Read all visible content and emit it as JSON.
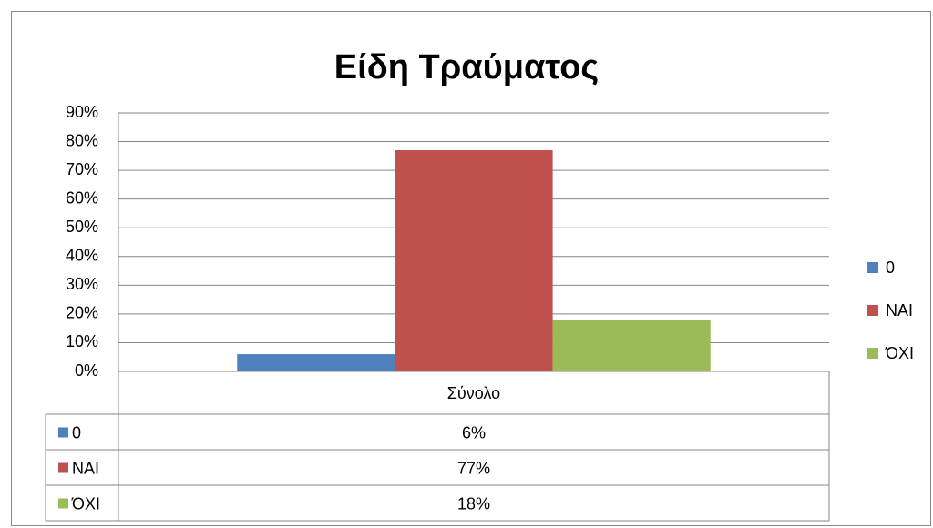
{
  "chart_data": {
    "type": "bar",
    "title": "Είδη Τραύματος",
    "categories": [
      "Σύνολο"
    ],
    "series": [
      {
        "name": "0",
        "color": "#4f81bd",
        "values": [
          6
        ],
        "value_labels": [
          "6%"
        ]
      },
      {
        "name": "ΝΑΙ",
        "color": "#c0504d",
        "values": [
          77
        ],
        "value_labels": [
          "77%"
        ]
      },
      {
        "name": "ΌΧΙ",
        "color": "#9bbb59",
        "values": [
          18
        ],
        "value_labels": [
          "18%"
        ]
      }
    ],
    "ylim": [
      0,
      90
    ],
    "yticks": [
      {
        "value": 0,
        "label": "0%"
      },
      {
        "value": 10,
        "label": "10%"
      },
      {
        "value": 20,
        "label": "20%"
      },
      {
        "value": 30,
        "label": "30%"
      },
      {
        "value": 40,
        "label": "40%"
      },
      {
        "value": 50,
        "label": "50%"
      },
      {
        "value": 60,
        "label": "60%"
      },
      {
        "value": 70,
        "label": "70%"
      },
      {
        "value": 80,
        "label": "80%"
      },
      {
        "value": 90,
        "label": "90%"
      }
    ],
    "grid": true,
    "legend": "right"
  }
}
